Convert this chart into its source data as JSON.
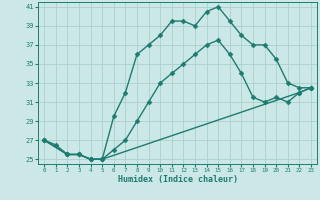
{
  "xlabel": "Humidex (Indice chaleur)",
  "xlim": [
    -0.5,
    23.5
  ],
  "ylim": [
    24.5,
    41.5
  ],
  "yticks": [
    25,
    27,
    29,
    31,
    33,
    35,
    37,
    39,
    41
  ],
  "xticks": [
    0,
    1,
    2,
    3,
    4,
    5,
    6,
    7,
    8,
    9,
    10,
    11,
    12,
    13,
    14,
    15,
    16,
    17,
    18,
    19,
    20,
    21,
    22,
    23
  ],
  "bg_color": "#cce8e6",
  "grid_color": "#aacfcd",
  "line_color": "#1e7b70",
  "lines": [
    {
      "x": [
        0,
        1,
        2,
        3,
        4,
        5,
        6,
        7,
        8,
        9,
        10,
        11,
        12,
        13,
        14,
        15,
        16,
        17,
        18,
        19,
        20,
        21,
        22,
        23
      ],
      "y": [
        27,
        26.5,
        25.5,
        25.5,
        25,
        25,
        29.5,
        32,
        36,
        37,
        38,
        39.5,
        39.5,
        39,
        40.5,
        41,
        39.5,
        38,
        37,
        37,
        35.5,
        33,
        32.5,
        32.5
      ]
    },
    {
      "x": [
        0,
        2,
        3,
        4,
        5,
        6,
        7,
        8,
        9,
        10,
        11,
        12,
        13,
        14,
        15,
        16,
        17,
        18,
        19,
        20,
        21,
        22,
        23
      ],
      "y": [
        27,
        25.5,
        25.5,
        25,
        25,
        26,
        27,
        29,
        31,
        33,
        34,
        35,
        36,
        37,
        37.5,
        36,
        34,
        31.5,
        31,
        31.5,
        31,
        32,
        32.5
      ]
    },
    {
      "x": [
        0,
        2,
        3,
        4,
        5,
        22,
        23
      ],
      "y": [
        27,
        25.5,
        25.5,
        25,
        25,
        32,
        32.5
      ]
    }
  ],
  "marker": "D",
  "markersize": 2.5,
  "linewidth": 1.0
}
